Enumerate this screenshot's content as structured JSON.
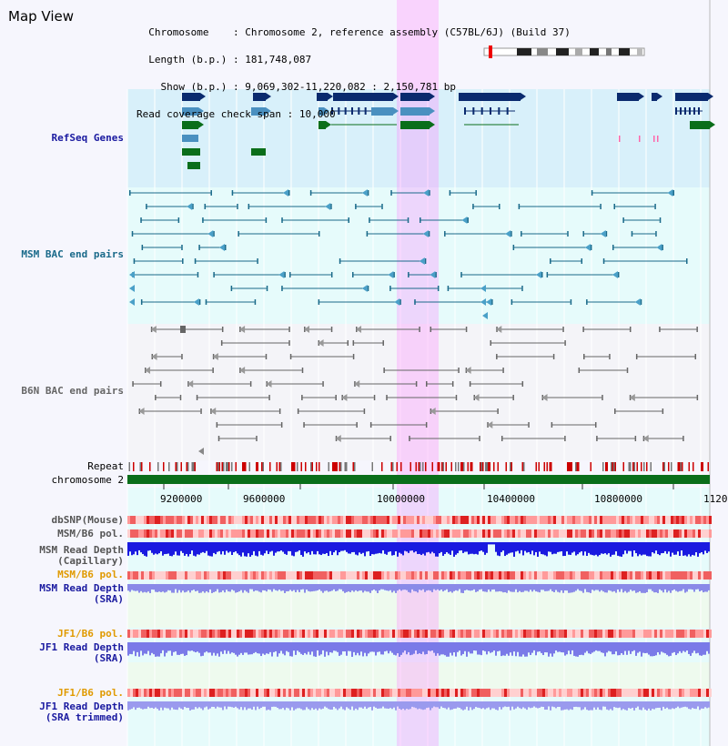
{
  "page": {
    "title": "Map View"
  },
  "info": {
    "chromosome_label": "Chromosome",
    "chromosome_value": "Chromosome 2, reference assembly (C57BL/6J) (Build 37)",
    "length_label": "Length (b.p.)",
    "length_value": "181,748,087",
    "show_label": "Show (b.p.)",
    "show_value": "9,069,302-11,220,082 : 2,150,781 bp",
    "coverage_label": "Read coverage check span",
    "coverage_value": "10,000"
  },
  "tracks": {
    "refseq": "RefSeq Genes",
    "msm_bac": "MSM BAC end pairs",
    "b6n_bac": "B6N BAC end pairs",
    "repeat": "Repeat",
    "chromosome": "chromosome 2",
    "dbsnp": "dbSNP(Mouse)",
    "msm_b6_pol_1": "MSM/B6 pol.",
    "msm_read_depth_cap_1": "MSM Read Depth",
    "msm_read_depth_cap_2": "(Capillary)",
    "msm_b6_pol_2": "MSM/B6 pol.",
    "msm_read_depth_sra_1": "MSM Read Depth",
    "msm_read_depth_sra_2": "(SRA)",
    "jf1_b6_pol_1": "JF1/B6 pol.",
    "jf1_read_depth_sra_1": "JF1 Read Depth",
    "jf1_read_depth_sra_2": "(SRA)",
    "jf1_b6_pol_2": "JF1/B6 pol.",
    "jf1_read_depth_trim_1": "JF1 Read Depth",
    "jf1_read_depth_trim_2": "(SRA trimmed)"
  },
  "axis": {
    "ticks": [
      "9200000",
      "9600000",
      "10000000",
      "10400000",
      "10800000",
      "1120"
    ]
  },
  "colors": {
    "gene_dark": "#0a2a6e",
    "gene_mid": "#4a90c0",
    "gene_green": "#0a6e1a",
    "msm_line": "#1a6a8a",
    "b6n_line": "#666666",
    "highlight": "#ff80ff",
    "depth_blue": "#1a1ae0",
    "depth_light": "#7a7ae8",
    "pol_red": "#ee3333",
    "label_blue": "#1a1aa0",
    "label_teal": "#1a6a8a",
    "label_orange": "#e09a00"
  }
}
